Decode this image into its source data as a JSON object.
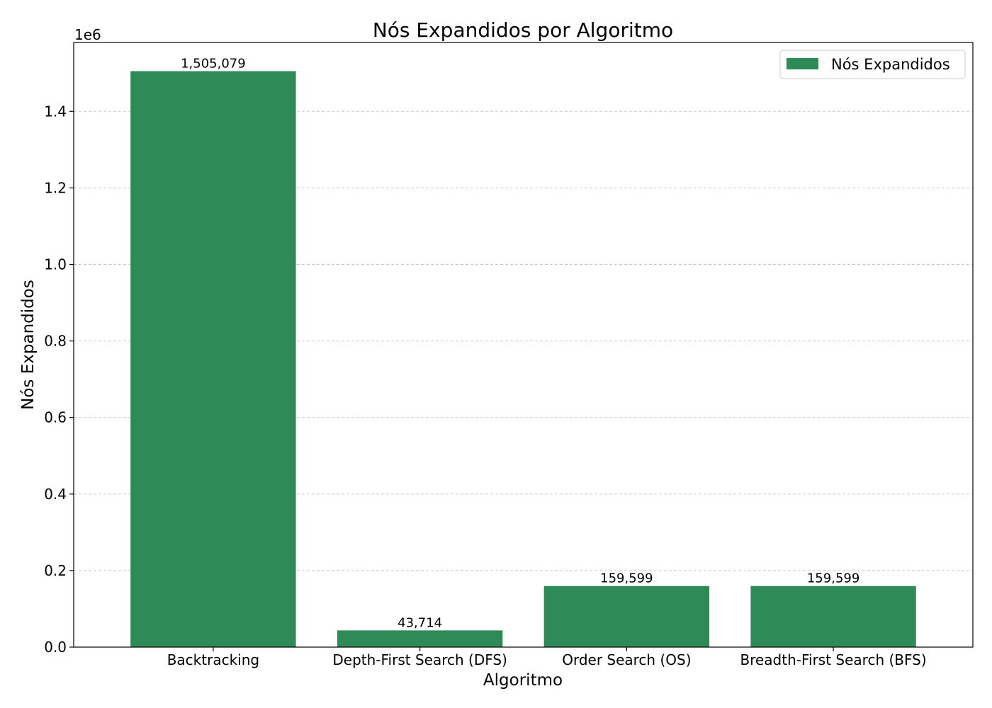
{
  "chart_data": {
    "type": "bar",
    "title": "Nós Expandidos por Algoritmo",
    "xlabel": "Algoritmo",
    "ylabel": "Nós Expandidos",
    "y_offset_label": "1e6",
    "categories": [
      "Backtracking",
      "Depth-First Search (DFS)",
      "Order Search (OS)",
      "Breadth-First Search (BFS)"
    ],
    "series": [
      {
        "name": "Nós Expandidos",
        "values": [
          1505079,
          43714,
          159599,
          159599
        ],
        "color": "#2e8b57"
      }
    ],
    "data_labels": [
      "1,505,079",
      "43,714",
      "159,599",
      "159,599"
    ],
    "yticks": [
      0,
      0.2,
      0.4,
      0.6,
      0.8,
      1.0,
      1.2,
      1.4
    ],
    "ytick_labels": [
      "0.0",
      "0.2",
      "0.4",
      "0.6",
      "0.8",
      "1.0",
      "1.2",
      "1.4"
    ],
    "ytick_scale": 1000000,
    "ylim": [
      0,
      1580000
    ],
    "grid": "y-dashed",
    "legend_position": "top-right"
  }
}
